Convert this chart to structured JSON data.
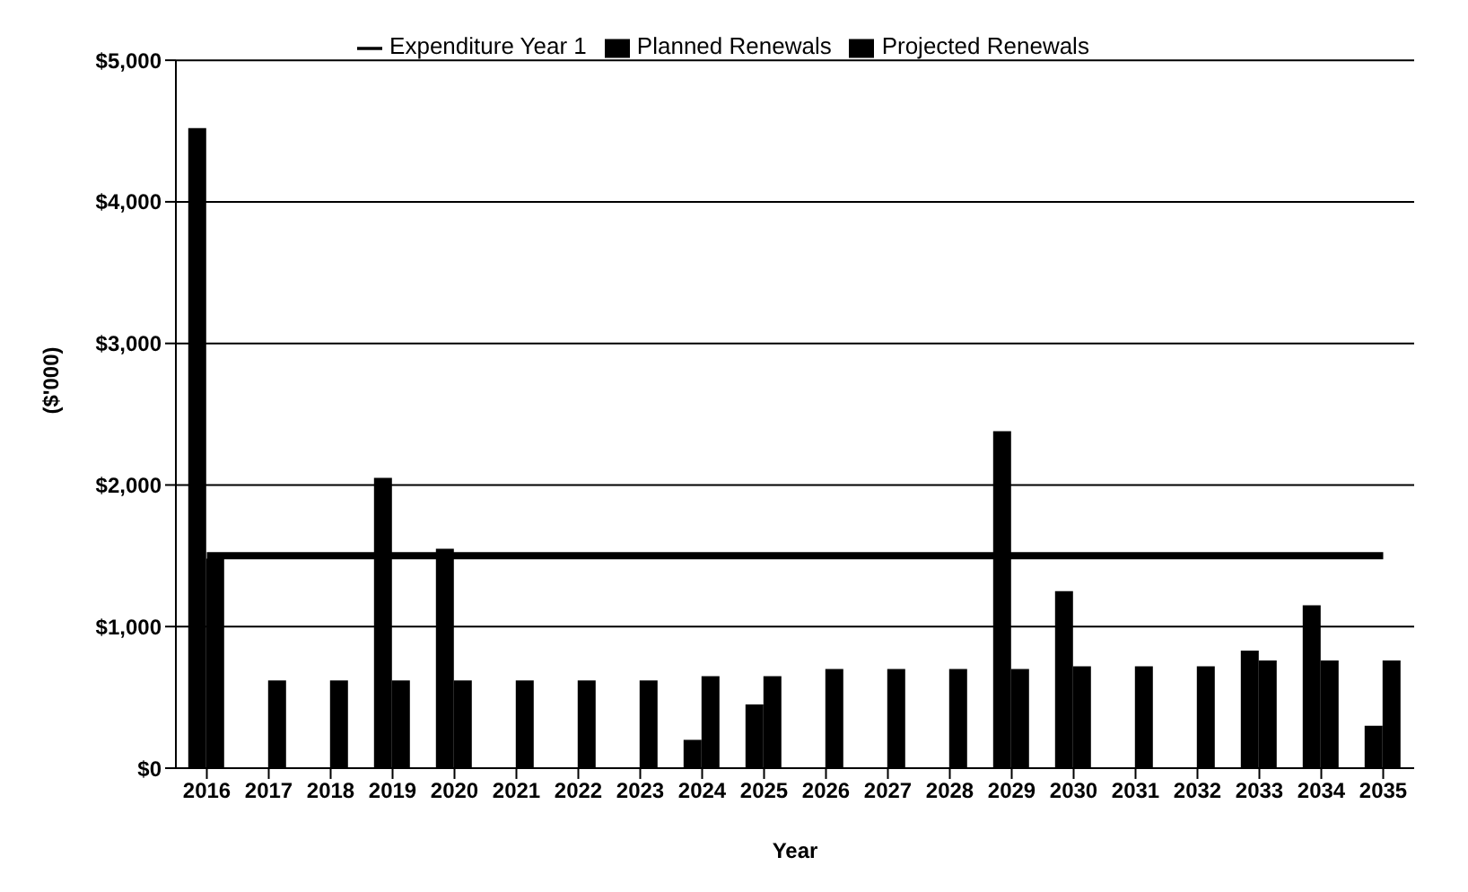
{
  "chart_data": {
    "type": "bar",
    "xlabel": "Year",
    "ylabel": "($'000)",
    "categories": [
      "2016",
      "2017",
      "2018",
      "2019",
      "2020",
      "2021",
      "2022",
      "2023",
      "2024",
      "2025",
      "2026",
      "2027",
      "2028",
      "2029",
      "2030",
      "2031",
      "2032",
      "2033",
      "2034",
      "2035"
    ],
    "series": [
      {
        "name": "Projected Renewals",
        "color": "#000000",
        "values": [
          4520,
          0,
          0,
          2050,
          1550,
          0,
          0,
          0,
          200,
          450,
          0,
          0,
          0,
          2380,
          1250,
          0,
          0,
          830,
          1150,
          300
        ]
      },
      {
        "name": "Planned Renewals",
        "color": "#000000",
        "values": [
          1480,
          620,
          620,
          620,
          620,
          620,
          620,
          620,
          650,
          650,
          700,
          700,
          700,
          700,
          720,
          720,
          720,
          760,
          760,
          760
        ]
      },
      {
        "name": "Expenditure Year 1",
        "type": "line",
        "color": "#000000",
        "marker": "none",
        "values": [
          1500,
          1500,
          1500,
          1500,
          1500,
          1500,
          1500,
          1500,
          1500,
          1500,
          1500,
          1500,
          1500,
          1500,
          1500,
          1500,
          1500,
          1500,
          1500,
          1500
        ]
      }
    ],
    "ylim": [
      0,
      5000
    ],
    "yticks": [
      {
        "value": 0,
        "label": "$0"
      },
      {
        "value": 1000,
        "label": "$1,000"
      },
      {
        "value": 2000,
        "label": "$2,000"
      },
      {
        "value": 3000,
        "label": "$3,000"
      },
      {
        "value": 4000,
        "label": "$4,000"
      },
      {
        "value": 5000,
        "label": "$5,000"
      }
    ],
    "grid": "y",
    "legend": "top"
  }
}
